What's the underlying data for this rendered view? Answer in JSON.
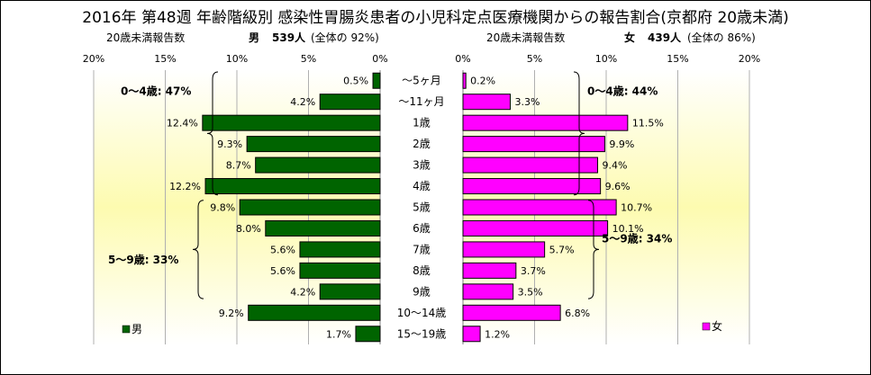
{
  "title": "2016年 第48週 年齢階級別 感染性胃腸炎患者の小児科定点医療機関からの報告割合(京都府 20歳未満)",
  "panels": {
    "male": {
      "header_label": "20歳未満報告数",
      "header_sex": "男",
      "header_count": "539人",
      "header_share": "(全体の 92%)",
      "legend": "男",
      "group1_label": "0～4歳: 47%",
      "group2_label": "5～9歳: 33%",
      "color": "#006400"
    },
    "female": {
      "header_label": "20歳未満報告数",
      "header_sex": "女",
      "header_count": "439人",
      "header_share": "(全体の 86%)",
      "legend": "女",
      "group1_label": "0～4歳: 44%",
      "group2_label": "5～9歳: 34%",
      "color": "#ff00ff"
    }
  },
  "chart_data": {
    "type": "bar",
    "orientation": "horizontal",
    "layout": "population pyramid",
    "categories": [
      "～5ヶ月",
      "～11ヶ月",
      "1歳",
      "2歳",
      "3歳",
      "4歳",
      "5歳",
      "6歳",
      "7歳",
      "8歳",
      "9歳",
      "10～14歳",
      "15～19歳"
    ],
    "series": [
      {
        "name": "男",
        "values": [
          0.5,
          4.2,
          12.4,
          9.3,
          8.7,
          12.2,
          9.8,
          8.0,
          5.6,
          5.6,
          4.2,
          9.2,
          1.7
        ]
      },
      {
        "name": "女",
        "values": [
          0.2,
          3.3,
          11.5,
          9.9,
          9.4,
          9.6,
          10.7,
          10.1,
          5.7,
          3.7,
          3.5,
          6.8,
          1.2
        ]
      }
    ],
    "value_unit": "%",
    "xlim": [
      0,
      20
    ],
    "ticks": [
      0,
      5,
      10,
      15,
      20
    ],
    "tick_labels": [
      "0%",
      "5%",
      "10%",
      "15%",
      "20%"
    ],
    "grid": true,
    "legend": "bottom-left of each panel"
  }
}
